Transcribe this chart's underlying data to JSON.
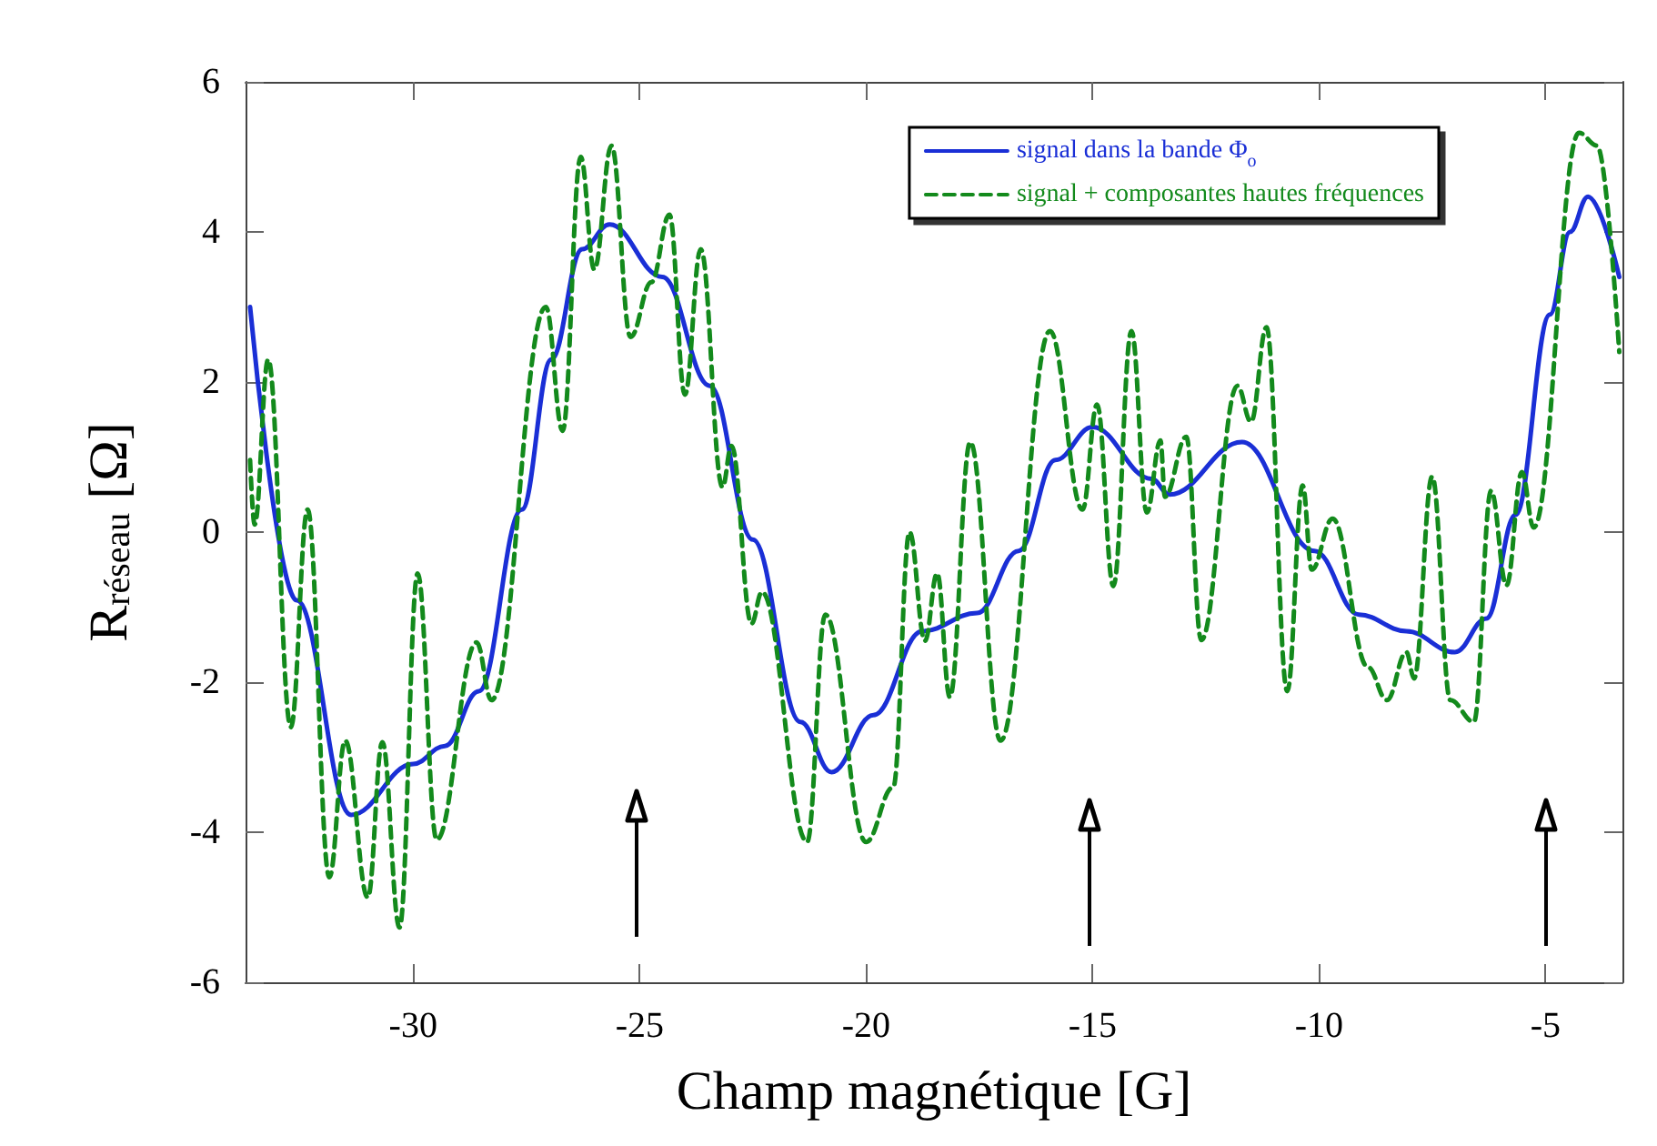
{
  "chart_data": {
    "type": "line",
    "xlabel": "Champ magnétique [G]",
    "ylabel": "R$_{réseau}$ [Ω]",
    "xlim": [
      -33.7,
      -3.3
    ],
    "xticks": [
      -30,
      -25,
      -20,
      -15,
      -10,
      -5
    ],
    "ylim": [
      -6,
      6
    ],
    "yticks": [
      -6,
      -4,
      -2,
      0,
      2,
      4,
      6
    ],
    "grid": false,
    "legend": "top right",
    "marker": "none",
    "series": [
      {
        "name": "signal dans la bande Φ$_{o}$",
        "color": "#1a2fd6",
        "line_style": "solid",
        "x": [
          -33.6,
          -32.57,
          -31.37,
          -30,
          -29.3,
          -28.55,
          -27.6,
          -26.95,
          -26.27,
          -25.66,
          -24.5,
          -23.45,
          -22.5,
          -21.45,
          -20.76,
          -19.84,
          -18.76,
          -17.55,
          -16.63,
          -15.82,
          -15.0,
          -13.7,
          -13.3,
          -11.7,
          -10.1,
          -9.12,
          -8.07,
          -7.0,
          -6.3,
          -5.66,
          -4.9,
          -4.46,
          -4.06,
          -3.37
        ],
        "values": [
          3.0,
          -0.91,
          -3.77,
          -3.09,
          -2.85,
          -2.12,
          0.3,
          2.3,
          3.77,
          4.1,
          3.4,
          1.95,
          -0.1,
          -2.53,
          -3.2,
          -2.44,
          -1.32,
          -1.08,
          -0.25,
          0.96,
          1.4,
          0.71,
          0.5,
          1.2,
          -0.25,
          -1.1,
          -1.32,
          -1.6,
          -1.15,
          0.23,
          2.9,
          4.0,
          4.47,
          3.4
        ]
      },
      {
        "name": "signal + composantes hautes fréquences",
        "color": "#138a1c",
        "line_style": "dashed",
        "x": [
          -33.6,
          -33.5,
          -33.2,
          -32.7,
          -32.33,
          -31.85,
          -31.5,
          -31.0,
          -30.68,
          -30.3,
          -29.9,
          -29.48,
          -28.6,
          -28.27,
          -27.07,
          -26.7,
          -26.3,
          -26.0,
          -25.62,
          -25.2,
          -24.74,
          -24.34,
          -24.0,
          -23.65,
          -23.17,
          -22.97,
          -22.53,
          -22.3,
          -21.3,
          -20.9,
          -20.0,
          -19.4,
          -19.04,
          -18.7,
          -18.43,
          -18.15,
          -17.7,
          -17.03,
          -15.94,
          -15.22,
          -14.9,
          -14.54,
          -14.14,
          -13.8,
          -13.5,
          -13.4,
          -12.93,
          -12.6,
          -11.8,
          -11.5,
          -11.16,
          -10.7,
          -10.36,
          -10.16,
          -9.7,
          -8.92,
          -8.5,
          -8.07,
          -7.9,
          -7.5,
          -7.1,
          -6.58,
          -6.2,
          -5.86,
          -5.52,
          -5.26,
          -4.26,
          -3.86,
          -3.37
        ],
        "values": [
          0.96,
          0.1,
          2.3,
          -2.6,
          0.3,
          -4.6,
          -2.78,
          -4.87,
          -2.8,
          -5.27,
          -0.55,
          -4.1,
          -1.47,
          -2.24,
          3.0,
          1.35,
          5.0,
          3.5,
          5.15,
          2.6,
          3.33,
          4.23,
          1.83,
          3.77,
          0.6,
          1.15,
          -1.22,
          -0.8,
          -4.13,
          -1.1,
          -4.13,
          -3.4,
          0.0,
          -1.45,
          -0.55,
          -2.2,
          1.2,
          -2.78,
          2.68,
          0.3,
          1.7,
          -0.72,
          2.68,
          0.26,
          1.22,
          0.47,
          1.27,
          -1.44,
          1.95,
          1.47,
          2.73,
          -2.12,
          0.62,
          -0.5,
          0.18,
          -1.8,
          -2.24,
          -1.6,
          -1.95,
          0.74,
          -2.24,
          -2.53,
          0.55,
          -0.71,
          0.8,
          0.06,
          5.32,
          5.15,
          2.4
        ]
      }
    ]
  }
}
